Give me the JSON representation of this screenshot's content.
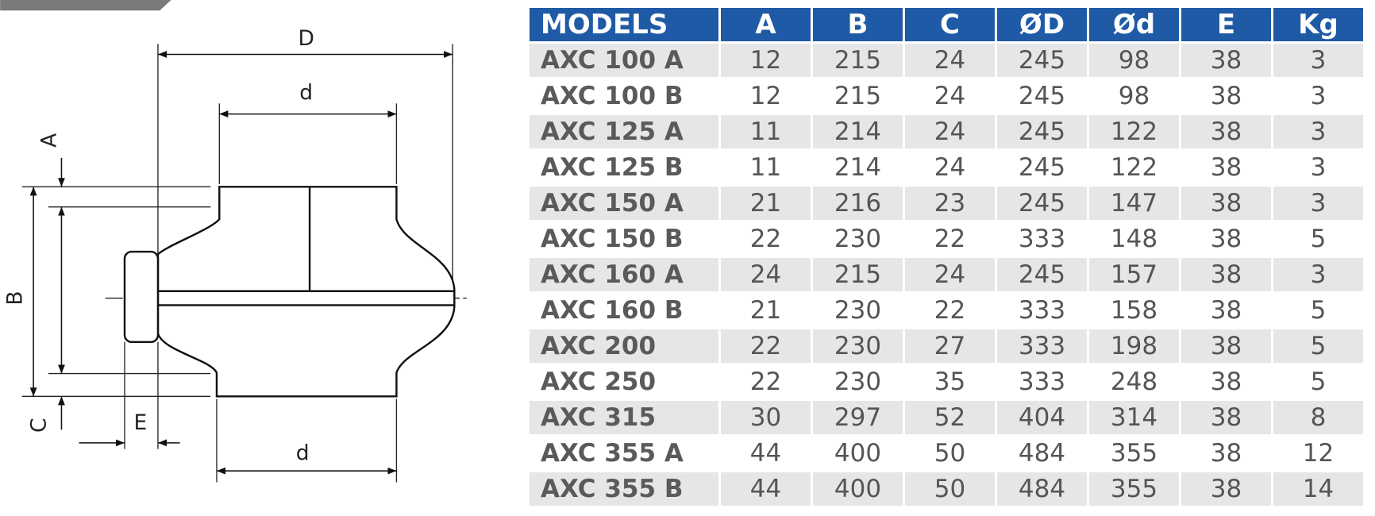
{
  "diagram": {
    "labels": {
      "D": "D",
      "d_top": "d",
      "A": "A",
      "B": "B",
      "C": "C",
      "E": "E",
      "d_bottom": "d"
    }
  },
  "table": {
    "header": [
      "MODELS",
      "A",
      "B",
      "C",
      "ØD",
      "Ød",
      "E",
      "Kg"
    ],
    "rows": [
      [
        "AXC 100 A",
        12,
        215,
        24,
        245,
        98,
        38,
        3
      ],
      [
        "AXC 100 B",
        12,
        215,
        24,
        245,
        98,
        38,
        3
      ],
      [
        "AXC 125 A",
        11,
        214,
        24,
        245,
        122,
        38,
        3
      ],
      [
        "AXC 125 B",
        11,
        214,
        24,
        245,
        122,
        38,
        3
      ],
      [
        "AXC 150 A",
        21,
        216,
        23,
        245,
        147,
        38,
        3
      ],
      [
        "AXC 150 B",
        22,
        230,
        22,
        333,
        148,
        38,
        5
      ],
      [
        "AXC 160 A",
        24,
        215,
        24,
        245,
        157,
        38,
        3
      ],
      [
        "AXC 160 B",
        21,
        230,
        22,
        333,
        158,
        38,
        5
      ],
      [
        "AXC 200",
        22,
        230,
        27,
        333,
        198,
        38,
        5
      ],
      [
        "AXC 250",
        22,
        230,
        35,
        333,
        248,
        38,
        5
      ],
      [
        "AXC 315",
        30,
        297,
        52,
        404,
        314,
        38,
        8
      ],
      [
        "AXC 355 A",
        44,
        400,
        50,
        484,
        355,
        38,
        12
      ],
      [
        "AXC 355 B",
        44,
        400,
        50,
        484,
        355,
        38,
        14
      ]
    ]
  }
}
